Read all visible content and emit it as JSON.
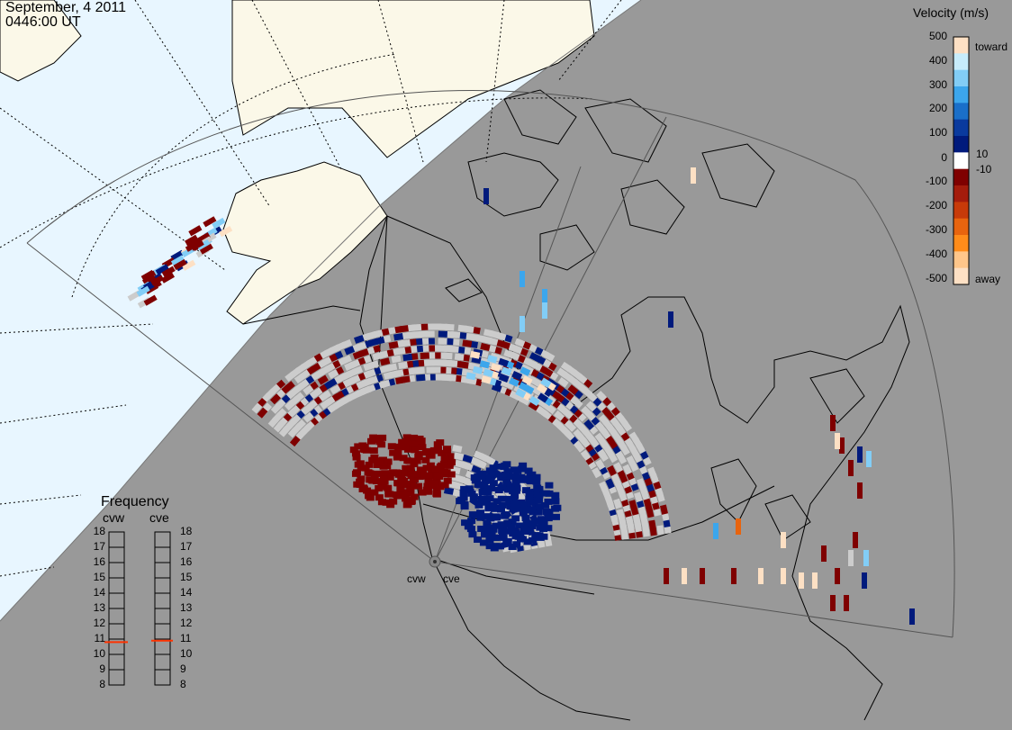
{
  "header": {
    "date": "September, 4 2011",
    "time": "0446:00 UT"
  },
  "colorbar": {
    "title": "Velocity (m/s)",
    "ticks": [
      "500",
      "400",
      "300",
      "200",
      "100",
      "10",
      "0",
      "-10",
      "-100",
      "-200",
      "-300",
      "-400",
      "-500"
    ],
    "toward_label": "toward",
    "away_label": "away",
    "colors": [
      "#fde0c4",
      "#c7ecfb",
      "#82cdf6",
      "#3ca6ec",
      "#1a6fc9",
      "#0a3a9e",
      "#001a7c",
      "#ffffff",
      "#7f0000",
      "#a41c0c",
      "#c73a09",
      "#e8640e",
      "#ff8c1a",
      "#ffc68a",
      "#fde0c4"
    ]
  },
  "frequency": {
    "title": "Frequency",
    "radars": [
      "cvw",
      "cve"
    ],
    "scale": [
      "18",
      "17",
      "16",
      "15",
      "14",
      "13",
      "12",
      "11",
      "10",
      "9",
      "8"
    ],
    "values_mhz": [
      10.8,
      10.9
    ],
    "marker_color": "#ff3300"
  },
  "sites": [
    "cvw",
    "cve"
  ],
  "map": {
    "ocean_color": "#e8f6ff",
    "land_day_color": "#fbf8e8",
    "night_color": "#999999",
    "fov_color": "#555555",
    "ground_scatter_color": "#cccccc"
  }
}
